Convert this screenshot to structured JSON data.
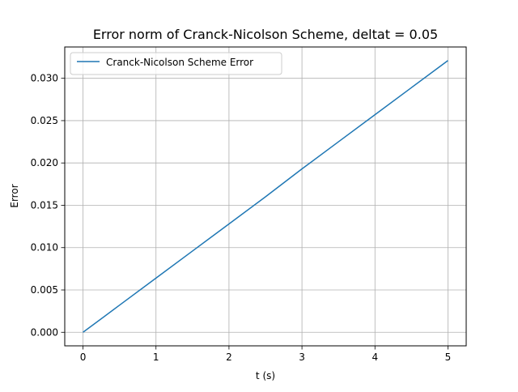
{
  "chart_data": {
    "type": "line",
    "title": "Error norm of Cranck-Nicolson Scheme, deltat = 0.05",
    "xlabel": "t (s)",
    "ylabel": "Error",
    "xlim": [
      -0.25,
      5.25
    ],
    "ylim": [
      -0.0016,
      0.0337
    ],
    "x_ticks": [
      0,
      1,
      2,
      3,
      4,
      5
    ],
    "x_tick_labels": [
      "0",
      "1",
      "2",
      "3",
      "4",
      "5"
    ],
    "y_ticks": [
      0.0,
      0.005,
      0.01,
      0.015,
      0.02,
      0.025,
      0.03
    ],
    "y_tick_labels": [
      "0.000",
      "0.005",
      "0.010",
      "0.015",
      "0.020",
      "0.025",
      "0.030"
    ],
    "grid": true,
    "legend_position": "upper-left",
    "series": [
      {
        "name": "Cranck-Nicolson Scheme Error",
        "color": "#1f77b4",
        "x": [
          0,
          0.5,
          1,
          1.5,
          2,
          2.5,
          3,
          3.5,
          4,
          4.5,
          5
        ],
        "y": [
          0.0,
          0.0032,
          0.0064,
          0.0096,
          0.0128,
          0.016,
          0.0193,
          0.0225,
          0.0257,
          0.0289,
          0.0321
        ]
      }
    ]
  }
}
